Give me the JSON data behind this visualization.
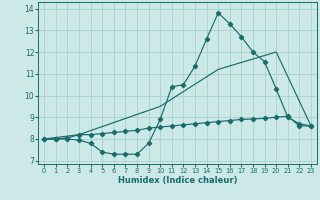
{
  "xlabel": "Humidex (Indice chaleur)",
  "background_color": "#cce9e8",
  "grid_color": "#aad4d3",
  "line_color": "#1a6b6b",
  "xlim": [
    -0.5,
    23.5
  ],
  "ylim": [
    6.85,
    14.3
  ],
  "xticks": [
    0,
    1,
    2,
    3,
    4,
    5,
    6,
    7,
    8,
    9,
    10,
    11,
    12,
    13,
    14,
    15,
    16,
    17,
    18,
    19,
    20,
    21,
    22,
    23
  ],
  "yticks": [
    7,
    8,
    9,
    10,
    11,
    12,
    13,
    14
  ],
  "line1_x": [
    0,
    1,
    2,
    3,
    4,
    5,
    6,
    7,
    8,
    9,
    10,
    11,
    12,
    13,
    14,
    15,
    16,
    17,
    18,
    19,
    20,
    21,
    22,
    23
  ],
  "line1_y": [
    8.0,
    8.0,
    8.0,
    7.95,
    7.8,
    7.4,
    7.3,
    7.3,
    7.3,
    7.8,
    8.9,
    10.4,
    10.5,
    11.35,
    12.6,
    13.8,
    13.3,
    12.7,
    12.0,
    11.55,
    10.3,
    9.0,
    8.7,
    8.6
  ],
  "line2_x": [
    0,
    1,
    2,
    3,
    4,
    5,
    6,
    7,
    8,
    9,
    10,
    11,
    12,
    13,
    14,
    15,
    16,
    17,
    18,
    19,
    20,
    21,
    22,
    23
  ],
  "line2_y": [
    8.0,
    8.0,
    8.05,
    8.2,
    8.2,
    8.25,
    8.3,
    8.35,
    8.4,
    8.5,
    8.55,
    8.6,
    8.65,
    8.7,
    8.75,
    8.8,
    8.85,
    8.9,
    8.92,
    8.95,
    9.0,
    9.05,
    8.6,
    8.6
  ],
  "line3_x": [
    0,
    3,
    10,
    15,
    20,
    23
  ],
  "line3_y": [
    8.0,
    8.2,
    9.5,
    11.2,
    12.0,
    8.6
  ]
}
